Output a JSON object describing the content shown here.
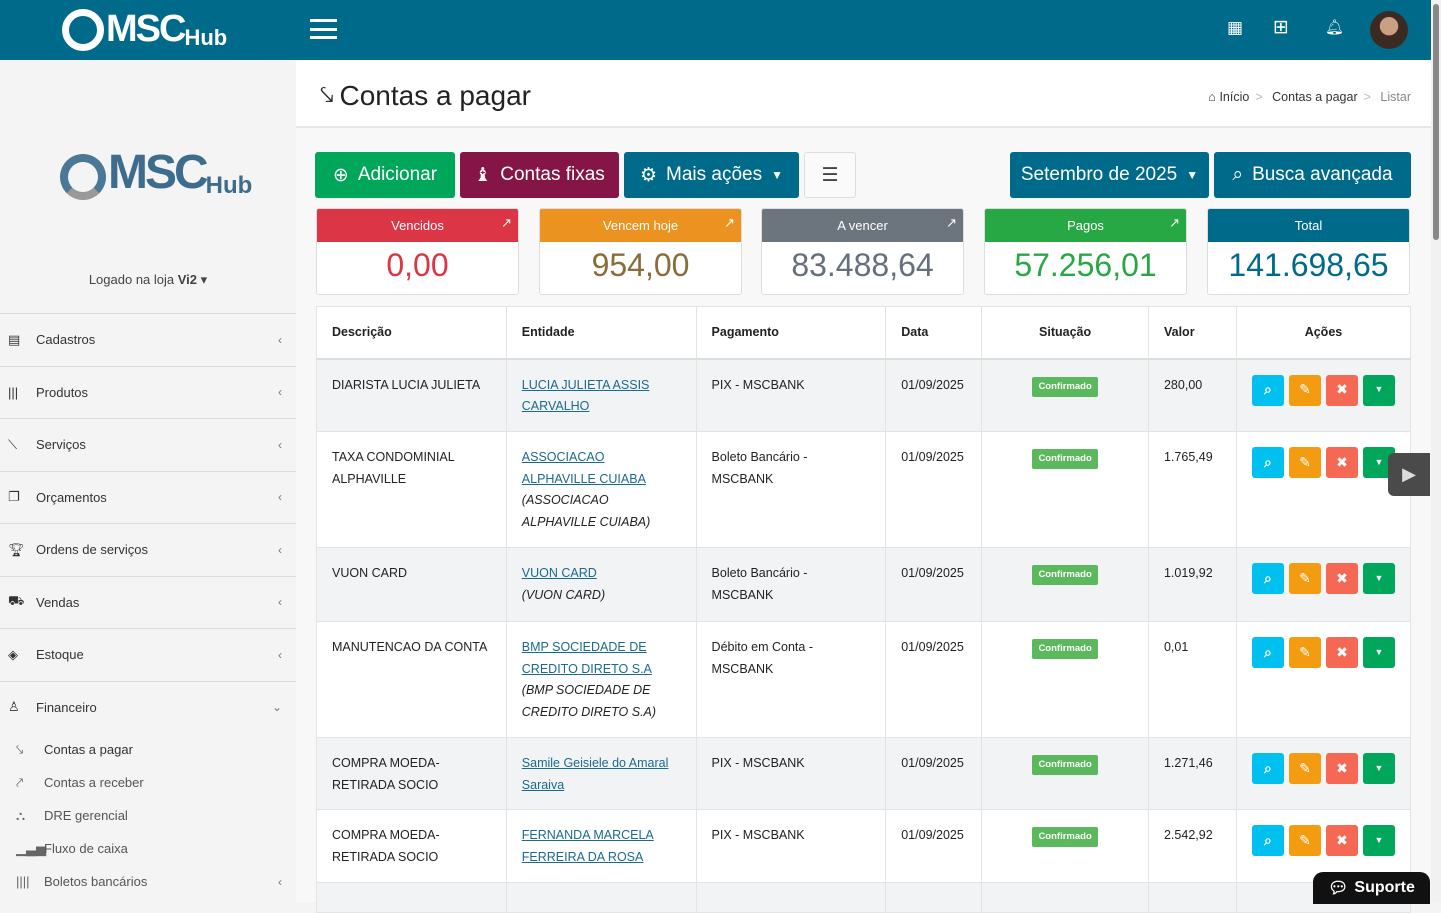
{
  "brand": {
    "name": "MSC",
    "suffix": "Hub"
  },
  "topbar": {
    "icons": [
      "calendar-icon",
      "apps-grid-icon",
      "bell-icon",
      "avatar"
    ]
  },
  "sidebar": {
    "store_label": "Logado na loja ",
    "store_name": "Vi2",
    "items": [
      {
        "label": "Cadastros",
        "icon": "id-card-icon"
      },
      {
        "label": "Produtos",
        "icon": "barcode-icon"
      },
      {
        "label": "Serviços",
        "icon": "wrench-icon"
      },
      {
        "label": "Orçamentos",
        "icon": "copy-icon"
      },
      {
        "label": "Ordens de serviços",
        "icon": "trophy-icon"
      },
      {
        "label": "Vendas",
        "icon": "basket-icon"
      },
      {
        "label": "Estoque",
        "icon": "cube-icon"
      },
      {
        "label": "Financeiro",
        "icon": "money-bag-icon"
      }
    ],
    "sub_items": [
      {
        "label": "Contas a pagar",
        "icon": "stairs-down-icon"
      },
      {
        "label": "Contas a receber",
        "icon": "stairs-up-icon"
      },
      {
        "label": "DRE gerencial",
        "icon": "sitemap-icon"
      },
      {
        "label": "Fluxo de caixa",
        "icon": "bar-chart-icon"
      },
      {
        "label": "Boletos bancários",
        "icon": "barcode-icon"
      }
    ]
  },
  "page": {
    "title": "Contas a pagar",
    "breadcrumb": [
      "Início",
      "Contas a pagar",
      "Listar"
    ]
  },
  "toolbar": {
    "add": "Adicionar",
    "fixed": "Contas fixas",
    "more": "Mais ações",
    "month": "Setembro de 2025",
    "search": "Busca avançada"
  },
  "summary": [
    {
      "label": "Vencidos",
      "value": "0,00",
      "color": "#dc3545"
    },
    {
      "label": "Vencem hoje",
      "value": "954,00",
      "color": "#ec9220"
    },
    {
      "label": "A vencer",
      "value": "83.488,64",
      "color": "#6c757d"
    },
    {
      "label": "Pagos",
      "value": "57.256,01",
      "color": "#28a745"
    },
    {
      "label": "Total",
      "value": "141.698,65",
      "color": "#006a8b"
    }
  ],
  "table": {
    "headers": [
      "Descrição",
      "Entidade",
      "Pagamento",
      "Data",
      "Situação",
      "Valor",
      "Ações"
    ],
    "rows": [
      {
        "desc": "DIARISTA LUCIA JULIETA",
        "entity": "LUCIA JULIETA ASSIS CARVALHO",
        "entity_obs": "",
        "payment": "PIX - MSCBANK",
        "date": "01/09/2025",
        "status": "Confirmado",
        "value": "280,00"
      },
      {
        "desc": "TAXA CONDOMINIAL ALPHAVILLE",
        "entity": "ASSOCIACAO ALPHAVILLE CUIABA",
        "entity_obs": "(ASSOCIACAO ALPHAVILLE CUIABA)",
        "payment": "Boleto Bancário - MSCBANK",
        "date": "01/09/2025",
        "status": "Confirmado",
        "value": "1.765,49"
      },
      {
        "desc": "VUON CARD",
        "entity": "VUON CARD",
        "entity_obs": "(VUON CARD)",
        "payment": "Boleto Bancário - MSCBANK",
        "date": "01/09/2025",
        "status": "Confirmado",
        "value": "1.019,92"
      },
      {
        "desc": "MANUTENCAO DA CONTA",
        "entity": "BMP SOCIEDADE DE CREDITO DIRETO S.A",
        "entity_obs": "(BMP SOCIEDADE DE CREDITO DIRETO S.A)",
        "payment": "Débito em Conta - MSCBANK",
        "date": "01/09/2025",
        "status": "Confirmado",
        "value": "0,01"
      },
      {
        "desc": "COMPRA MOEDA- RETIRADA SOCIO",
        "entity": "Samile Geisiele do Amaral Saraiva",
        "entity_obs": "",
        "payment": "PIX - MSCBANK",
        "date": "01/09/2025",
        "status": "Confirmado",
        "value": "1.271,46"
      },
      {
        "desc": "COMPRA MOEDA-RETIRADA SOCIO",
        "entity": "FERNANDA MARCELA FERREIRA DA ROSA",
        "entity_obs": "",
        "payment": "PIX - MSCBANK",
        "date": "01/09/2025",
        "status": "Confirmado",
        "value": "2.542,92"
      }
    ]
  },
  "support": {
    "label": "Suporte"
  },
  "colors": {
    "topbar": "#006a8b",
    "add": "#00a65a",
    "fixed": "#861547",
    "more": "#006a8b",
    "view": "#00c0ef",
    "edit": "#f39c12",
    "delete": "#f56954",
    "dropdown": "#00a65a"
  }
}
